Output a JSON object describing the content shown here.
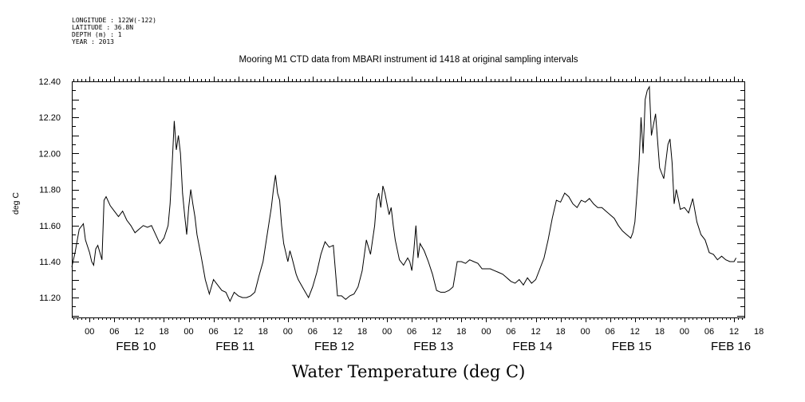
{
  "meta": {
    "longitude": "LONGITUDE : 122W(-122)",
    "latitude": "LATITUDE : 36.8N",
    "depth": "DEPTH (m) : 1",
    "year": "YEAR : 2013"
  },
  "chart_data": {
    "type": "line",
    "title": "Mooring M1 CTD data from MBARI instrument id 1418 at original sampling intervals",
    "xlabel": "Water Temperature (deg C)",
    "ylabel": "deg C",
    "ylim": [
      11.09,
      12.4
    ],
    "xlim_hours": [
      -4.3,
      158.5
    ],
    "y_ticks": [
      "11.20",
      "11.40",
      "11.60",
      "11.80",
      "12.00",
      "12.20",
      "12.40"
    ],
    "hour_tick_labels": [
      "00",
      "06",
      "12",
      "18",
      "00",
      "06",
      "12",
      "18",
      "00",
      "06",
      "12",
      "18",
      "00",
      "06",
      "12",
      "18",
      "00",
      "06",
      "12",
      "18",
      "00",
      "06",
      "12",
      "18",
      "00",
      "06",
      "12",
      "18"
    ],
    "day_labels": [
      "FEB 10",
      "FEB 11",
      "FEB 12",
      "FEB 13",
      "FEB 14",
      "FEB 15",
      "FEB 16"
    ],
    "grid": false,
    "series": [
      {
        "x": [
          -4.3,
          -3.5,
          -2.5,
          -1.5,
          -1.0,
          0.0,
          0.5,
          1.0,
          1.5,
          2.0,
          3.0,
          3.5,
          4.0,
          5.0,
          6.0,
          7.0,
          8.0,
          9.0,
          10.0,
          11.0,
          12.0,
          13.0,
          14.0,
          15.0,
          16.0,
          17.0,
          18.0,
          19.0,
          19.5,
          20.0,
          20.5,
          21.0,
          21.5,
          22.0,
          22.5,
          23.0,
          23.5,
          24.0,
          24.5,
          25.0,
          25.5,
          26.0,
          27.0,
          28.0,
          29.0,
          30.0,
          31.0,
          32.0,
          33.0,
          34.0,
          35.0,
          36.0,
          37.0,
          38.0,
          39.0,
          40.0,
          41.0,
          42.0,
          43.0,
          44.0,
          44.5,
          45.0,
          45.5,
          46.0,
          46.5,
          47.0,
          47.5,
          48.0,
          48.5,
          49.0,
          50.0,
          50.5,
          51.0,
          52.0,
          53.0,
          54.0,
          55.0,
          56.0,
          57.0,
          58.0,
          59.0,
          60.0,
          61.0,
          62.0,
          63.0,
          64.0,
          65.0,
          66.0,
          67.0,
          68.0,
          69.0,
          69.5,
          70.0,
          70.5,
          71.0,
          71.5,
          72.0,
          72.5,
          73.0,
          73.5,
          74.0,
          75.0,
          76.0,
          77.0,
          77.5,
          78.0,
          78.5,
          79.0,
          79.5,
          80.0,
          81.0,
          82.0,
          83.0,
          84.0,
          85.0,
          86.0,
          87.0,
          88.0,
          89.0,
          90.0,
          91.0,
          92.0,
          93.0,
          94.0,
          95.0,
          96.0,
          97.0,
          98.0,
          99.0,
          100.0,
          101.0,
          102.0,
          103.0,
          104.0,
          105.0,
          106.0,
          107.0,
          108.0,
          109.0,
          110.0,
          111.0,
          112.0,
          113.0,
          114.0,
          115.0,
          116.0,
          117.0,
          118.0,
          119.0,
          120.0,
          121.0,
          122.0,
          123.0,
          124.0,
          125.0,
          126.0,
          127.0,
          128.0,
          129.0,
          130.0,
          130.5,
          131.0,
          131.5,
          132.0,
          132.5,
          133.0,
          133.5,
          134.0,
          134.5,
          135.0,
          135.5,
          136.0,
          137.0,
          138.0,
          139.0,
          140.0,
          140.5,
          141.0,
          141.5,
          142.0,
          142.5,
          143.0,
          144.0,
          145.0,
          146.0,
          147.0,
          148.0,
          149.0,
          150.0,
          151.0,
          152.0,
          153.0,
          154.0,
          155.0,
          156.0,
          156.5
        ],
        "y": [
          11.37,
          11.45,
          11.58,
          11.61,
          11.52,
          11.45,
          11.4,
          11.38,
          11.47,
          11.49,
          11.41,
          11.74,
          11.76,
          11.71,
          11.68,
          11.65,
          11.68,
          11.63,
          11.6,
          11.56,
          11.58,
          11.6,
          11.59,
          11.6,
          11.55,
          11.5,
          11.53,
          11.6,
          11.72,
          11.94,
          12.18,
          12.02,
          12.1,
          12.0,
          11.78,
          11.66,
          11.55,
          11.7,
          11.8,
          11.72,
          11.65,
          11.55,
          11.43,
          11.3,
          11.22,
          11.3,
          11.27,
          11.24,
          11.23,
          11.18,
          11.23,
          11.21,
          11.2,
          11.2,
          11.21,
          11.23,
          11.32,
          11.4,
          11.55,
          11.7,
          11.8,
          11.88,
          11.78,
          11.74,
          11.6,
          11.5,
          11.45,
          11.4,
          11.46,
          11.42,
          11.33,
          11.3,
          11.28,
          11.24,
          11.2,
          11.26,
          11.34,
          11.44,
          11.51,
          11.48,
          11.49,
          11.21,
          11.21,
          11.19,
          11.21,
          11.22,
          11.26,
          11.35,
          11.52,
          11.44,
          11.6,
          11.74,
          11.78,
          11.7,
          11.82,
          11.78,
          11.72,
          11.66,
          11.7,
          11.6,
          11.52,
          11.41,
          11.38,
          11.42,
          11.4,
          11.35,
          11.46,
          11.6,
          11.42,
          11.5,
          11.46,
          11.4,
          11.33,
          11.24,
          11.23,
          11.23,
          11.24,
          11.26,
          11.4,
          11.4,
          11.39,
          11.41,
          11.4,
          11.39,
          11.36,
          11.36,
          11.36,
          11.35,
          11.34,
          11.33,
          11.31,
          11.29,
          11.28,
          11.3,
          11.27,
          11.31,
          11.28,
          11.3,
          11.36,
          11.42,
          11.52,
          11.64,
          11.74,
          11.73,
          11.78,
          11.76,
          11.72,
          11.7,
          11.74,
          11.73,
          11.75,
          11.72,
          11.7,
          11.7,
          11.68,
          11.66,
          11.64,
          11.6,
          11.57,
          11.55,
          11.54,
          11.53,
          11.56,
          11.62,
          11.78,
          11.95,
          12.2,
          12.0,
          12.3,
          12.35,
          12.37,
          12.1,
          12.22,
          11.92,
          11.86,
          12.05,
          12.08,
          11.95,
          11.72,
          11.8,
          11.75,
          11.69,
          11.7,
          11.67,
          11.75,
          11.62,
          11.55,
          11.52,
          11.45,
          11.44,
          11.41,
          11.43,
          11.41,
          11.4,
          11.4,
          11.42
        ]
      }
    ]
  }
}
